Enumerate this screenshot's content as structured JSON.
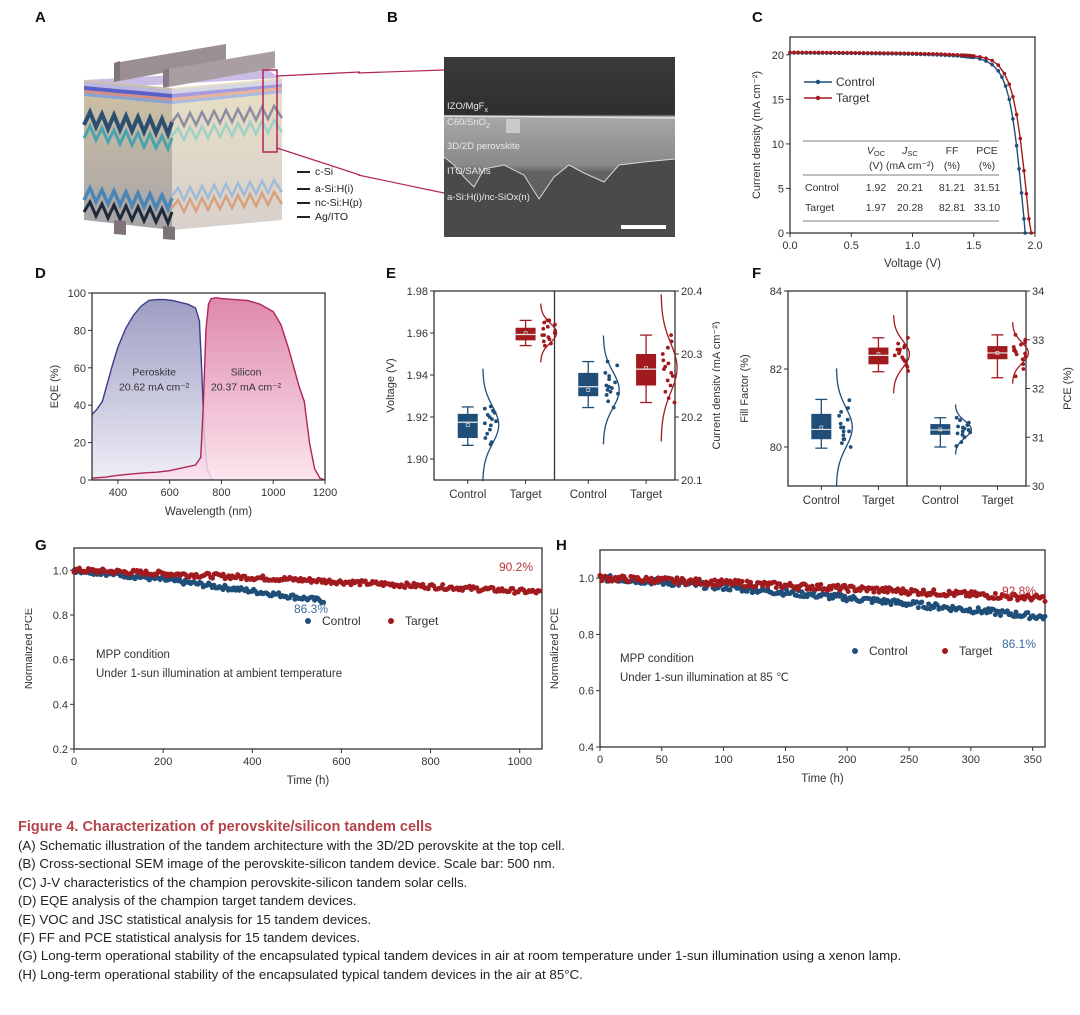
{
  "figure": {
    "panel_labels": [
      "A",
      "B",
      "C",
      "D",
      "E",
      "F",
      "G",
      "H"
    ],
    "colors": {
      "control": "#1f4e79",
      "target": "#a11a1e",
      "perovskite_fill": "#8c8cb8",
      "silicon_fill": "#d9739b",
      "caption_title": "#b3444a",
      "callout": "#b0245c"
    }
  },
  "panel_a": {
    "layers": [
      "c-Si",
      "a-Si:H(i)",
      "nc-Si:H(p)",
      "Ag/ITO"
    ]
  },
  "panel_b": {
    "layers": [
      "IZO/MgFx",
      "C60/SnO2",
      "3D/2D perovskite",
      "ITO/SAMs",
      "a-Si:H(i)/nc-SiOx(n)"
    ],
    "scale_bar": "500 nm"
  },
  "chart_data": [
    {
      "panel": "C",
      "type": "line",
      "xlabel": "Voltage (V)",
      "ylabel": "Current density (mA cm⁻²)",
      "xlim": [
        0,
        2.0
      ],
      "ylim": [
        0,
        22
      ],
      "xticks": [
        "0.0",
        "0.5",
        "1.0",
        "1.5",
        "2.0"
      ],
      "yticks": [
        "0",
        "5",
        "10",
        "15",
        "20"
      ],
      "legend": [
        "Control",
        "Target"
      ],
      "legend_position": "upper-left",
      "series": [
        {
          "name": "Control",
          "x": [
            0,
            0.2,
            0.4,
            0.6,
            0.8,
            1.0,
            1.2,
            1.4,
            1.5,
            1.55,
            1.6,
            1.65,
            1.7,
            1.73,
            1.76,
            1.79,
            1.82,
            1.85,
            1.87,
            1.89,
            1.91,
            1.92
          ],
          "y": [
            20.21,
            20.2,
            20.18,
            20.15,
            20.12,
            20.08,
            20.0,
            19.85,
            19.7,
            19.55,
            19.3,
            18.9,
            18.2,
            17.5,
            16.5,
            15.0,
            12.8,
            9.8,
            7.2,
            4.5,
            1.6,
            0
          ]
        },
        {
          "name": "Target",
          "x": [
            0,
            0.2,
            0.4,
            0.6,
            0.8,
            1.0,
            1.2,
            1.4,
            1.5,
            1.55,
            1.6,
            1.65,
            1.7,
            1.75,
            1.79,
            1.82,
            1.85,
            1.88,
            1.91,
            1.93,
            1.95,
            1.97
          ],
          "y": [
            20.28,
            20.27,
            20.25,
            20.22,
            20.2,
            20.16,
            20.1,
            19.98,
            19.88,
            19.78,
            19.62,
            19.35,
            18.85,
            17.9,
            16.7,
            15.3,
            13.3,
            10.6,
            7.0,
            4.4,
            1.6,
            0
          ]
        }
      ],
      "table": {
        "headers": [
          [
            "",
            "V_OC",
            "J_SC",
            "FF",
            "PCE"
          ],
          [
            "",
            "(V)",
            "(mA cm⁻²)",
            "(%)",
            "(%)"
          ]
        ],
        "rows": [
          [
            "Control",
            "1.92",
            "20.21",
            "81.21",
            "31.51"
          ],
          [
            "Target",
            "1.97",
            "20.28",
            "82.81",
            "33.10"
          ]
        ]
      }
    },
    {
      "panel": "D",
      "type": "area",
      "xlabel": "Wavelength (nm)",
      "ylabel": "EQE (%)",
      "xlim": [
        300,
        1200
      ],
      "ylim": [
        0,
        100
      ],
      "xticks": [
        "400",
        "600",
        "800",
        "1000",
        "1200"
      ],
      "yticks": [
        "0",
        "20",
        "40",
        "60",
        "80",
        "100"
      ],
      "series": [
        {
          "name": "Perovskite",
          "annotation": [
            "Peroskite",
            "20.62 mA cm⁻²"
          ],
          "x": [
            300,
            320,
            340,
            360,
            380,
            400,
            430,
            460,
            490,
            520,
            550,
            580,
            610,
            640,
            670,
            700,
            715,
            725,
            735,
            745,
            760,
            770
          ],
          "y": [
            35,
            38,
            42,
            52,
            62,
            71,
            81,
            88,
            93,
            96,
            96.5,
            96.5,
            96,
            95,
            94,
            92,
            85,
            55,
            20,
            6,
            1,
            0
          ]
        },
        {
          "name": "Silicon",
          "annotation": [
            "Silicon",
            "20.37 mA cm⁻²"
          ],
          "x": [
            300,
            350,
            400,
            450,
            500,
            550,
            600,
            650,
            700,
            720,
            730,
            740,
            750,
            760,
            780,
            800,
            850,
            900,
            950,
            1000,
            1030,
            1060,
            1080,
            1100,
            1120,
            1140,
            1160,
            1180,
            1200
          ],
          "y": [
            1,
            1.5,
            2.5,
            3.2,
            3.8,
            4.2,
            5,
            6.5,
            8,
            12,
            40,
            80,
            94,
            97,
            97.5,
            97,
            96.5,
            96,
            94,
            90,
            83,
            70,
            60,
            50,
            42,
            20,
            6,
            1,
            0
          ]
        }
      ]
    },
    {
      "panel": "E",
      "type": "box",
      "ylabel_left": "Voltage (V)",
      "ylabel_right": "Current density (mA cm⁻²)",
      "ylim_left": [
        1.89,
        1.98
      ],
      "ylim_right": [
        20.1,
        20.4
      ],
      "yticks_left": [
        "1.90",
        "1.92",
        "1.94",
        "1.96",
        "1.98"
      ],
      "yticks_right": [
        "20.1",
        "20.2",
        "20.3",
        "20.4"
      ],
      "categories": [
        "Control",
        "Target",
        "Control",
        "Target"
      ],
      "boxes": [
        {
          "group": "Control",
          "metric": "Voc",
          "axis": "left",
          "whisker_low": 1.9065,
          "q1": 1.91,
          "median": 1.9175,
          "mean": 1.9162,
          "q3": 1.9215,
          "whisker_high": 1.9248,
          "points": [
            1.907,
            1.908,
            1.91,
            1.912,
            1.914,
            1.916,
            1.917,
            1.918,
            1.919,
            1.92,
            1.921,
            1.922,
            1.923,
            1.924,
            1.925
          ]
        },
        {
          "group": "Target",
          "metric": "Voc",
          "axis": "left",
          "whisker_low": 1.954,
          "q1": 1.9565,
          "median": 1.9593,
          "mean": 1.96,
          "q3": 1.9625,
          "whisker_high": 1.966,
          "points": [
            1.954,
            1.955,
            1.956,
            1.957,
            1.958,
            1.959,
            1.959,
            1.96,
            1.961,
            1.962,
            1.963,
            1.964,
            1.965,
            1.966,
            1.966
          ]
        },
        {
          "group": "Control",
          "metric": "Jsc",
          "axis": "right",
          "whisker_low": 20.215,
          "q1": 20.233,
          "median": 20.248,
          "mean": 20.243,
          "q3": 20.27,
          "whisker_high": 20.288,
          "points": [
            20.215,
            20.225,
            20.235,
            20.237,
            20.24,
            20.243,
            20.246,
            20.248,
            20.25,
            20.255,
            20.26,
            20.265,
            20.27,
            20.282,
            20.288
          ]
        },
        {
          "group": "Target",
          "metric": "Jsc",
          "axis": "right",
          "whisker_low": 20.223,
          "q1": 20.25,
          "median": 20.276,
          "mean": 20.278,
          "q3": 20.3,
          "whisker_high": 20.33,
          "points": [
            20.223,
            20.23,
            20.24,
            20.25,
            20.258,
            20.265,
            20.27,
            20.276,
            20.28,
            20.285,
            20.29,
            20.3,
            20.31,
            20.32,
            20.33
          ]
        }
      ]
    },
    {
      "panel": "F",
      "type": "box",
      "ylabel_left": "Fill Factor (%)",
      "ylabel_right": "PCE (%)",
      "ylim_left": [
        79,
        84
      ],
      "ylim_right": [
        30,
        34
      ],
      "yticks_left": [
        "80",
        "82",
        "84"
      ],
      "yticks_right": [
        "30",
        "31",
        "32",
        "33",
        "34"
      ],
      "categories": [
        "Control",
        "Target",
        "Control",
        "Target"
      ],
      "boxes": [
        {
          "group": "Control",
          "metric": "FF",
          "axis": "left",
          "whisker_low": 79.97,
          "q1": 80.2,
          "median": 80.45,
          "mean": 80.5,
          "q3": 80.85,
          "whisker_high": 81.22,
          "points": [
            80.0,
            80.1,
            80.2,
            80.2,
            80.3,
            80.4,
            80.4,
            80.5,
            80.5,
            80.6,
            80.7,
            80.8,
            80.9,
            81.0,
            81.2
          ]
        },
        {
          "group": "Target",
          "metric": "FF",
          "axis": "left",
          "whisker_low": 81.93,
          "q1": 82.12,
          "median": 82.35,
          "mean": 82.38,
          "q3": 82.55,
          "whisker_high": 82.8,
          "points": [
            81.95,
            82.05,
            82.1,
            82.2,
            82.25,
            82.3,
            82.35,
            82.4,
            82.45,
            82.5,
            82.5,
            82.55,
            82.6,
            82.65,
            82.8
          ]
        },
        {
          "group": "Control",
          "metric": "PCE",
          "axis": "right",
          "whisker_low": 30.8,
          "q1": 31.05,
          "median": 31.15,
          "mean": 31.16,
          "q3": 31.27,
          "whisker_high": 31.4,
          "points": [
            30.82,
            30.9,
            31.0,
            31.05,
            31.08,
            31.1,
            31.12,
            31.15,
            31.18,
            31.2,
            31.22,
            31.25,
            31.3,
            31.35,
            31.4
          ]
        },
        {
          "group": "Target",
          "metric": "PCE",
          "axis": "right",
          "whisker_low": 32.22,
          "q1": 32.6,
          "median": 32.73,
          "mean": 32.73,
          "q3": 32.87,
          "whisker_high": 33.1,
          "points": [
            32.25,
            32.4,
            32.5,
            32.6,
            32.65,
            32.7,
            32.72,
            32.75,
            32.78,
            32.8,
            32.85,
            32.9,
            32.95,
            33.0,
            33.1
          ]
        }
      ]
    },
    {
      "panel": "G",
      "type": "scatter",
      "xlabel": "Time (h)",
      "ylabel": "Normalized PCE",
      "xlim": [
        0,
        1050
      ],
      "ylim": [
        0.2,
        1.1
      ],
      "xticks": [
        "0",
        "200",
        "400",
        "600",
        "800",
        "1000"
      ],
      "yticks": [
        "0.2",
        "0.4",
        "0.6",
        "0.8",
        "1.0"
      ],
      "legend": [
        "Control",
        "Target"
      ],
      "legend_position": "center",
      "annotations": [
        "MPP condition",
        "Under 1-sun illumination at ambient temperature"
      ],
      "end_labels": {
        "Control": "86.3%",
        "Target": "90.2%"
      },
      "series": [
        {
          "name": "Control",
          "x_range": [
            0,
            560
          ],
          "start": 1.0,
          "end": 0.863
        },
        {
          "name": "Target",
          "x_range": [
            0,
            1045
          ],
          "start": 1.0,
          "end": 0.902
        }
      ]
    },
    {
      "panel": "H",
      "type": "scatter",
      "xlabel": "Time (h)",
      "ylabel": "Normalized PCE",
      "xlim": [
        0,
        360
      ],
      "ylim": [
        0.4,
        1.1
      ],
      "xticks": [
        "0",
        "50",
        "100",
        "150",
        "200",
        "250",
        "300",
        "350"
      ],
      "yticks": [
        "0.4",
        "0.6",
        "0.8",
        "1.0"
      ],
      "legend": [
        "Control",
        "Target"
      ],
      "legend_position": "center-right",
      "annotations": [
        "MPP condition",
        "Under 1-sun illumination at 85 ℃"
      ],
      "end_labels": {
        "Control": "86.1%",
        "Target": "92.8%"
      },
      "series": [
        {
          "name": "Control",
          "x_range": [
            0,
            360
          ],
          "start": 1.0,
          "end": 0.861
        },
        {
          "name": "Target",
          "x_range": [
            0,
            360
          ],
          "start": 1.0,
          "end": 0.928
        }
      ]
    }
  ],
  "caption": {
    "title": "Figure 4.  Characterization of perovskite/silicon tandem cells",
    "lines": [
      "(A) Schematic illustration of the tandem architecture with the 3D/2D perovskite at the top cell.",
      "(B) Cross-sectional SEM image of the perovskite-silicon tandem device. Scale bar: 500 nm.",
      "(C) J-V characteristics of the champion perovskite-silicon tandem solar cells.",
      "(D) EQE analysis of the champion target tandem devices.",
      "(E) VOC and JSC statistical analysis for 15 tandem devices.",
      "(F) FF and PCE statistical analysis for 15 tandem devices.",
      "(G) Long-term operational stability of the encapsulated typical tandem devices in air at room temperature under 1-sun illumination using a xenon lamp.",
      "(H) Long-term operational stability of the encapsulated typical tandem devices in the air at 85°C."
    ]
  }
}
